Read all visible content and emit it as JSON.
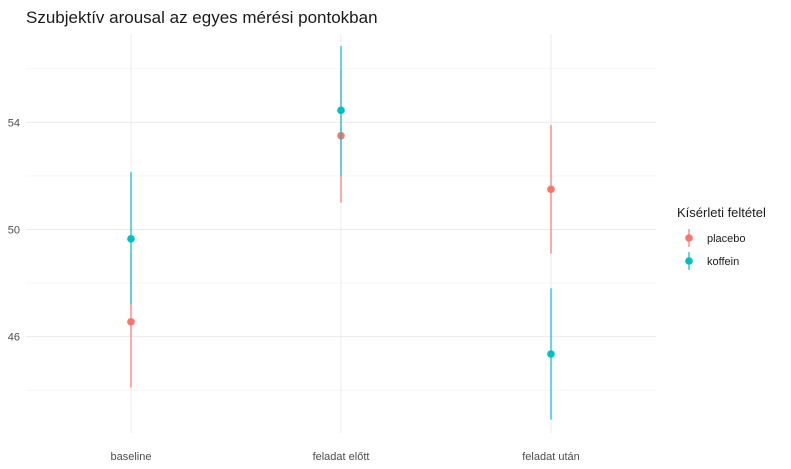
{
  "chart_data": {
    "type": "scatter",
    "title": "Szubjektív arousal az egyes mérési pontokban",
    "xlabel": "",
    "ylabel": "",
    "categories": [
      "baseline",
      "feladat előtt",
      "feladat után"
    ],
    "y_ticks": [
      46,
      50,
      54
    ],
    "ylim": [
      42.4,
      57.3
    ],
    "grid": true,
    "legend": {
      "title": "Kísérleti feltétel",
      "position": "right"
    },
    "series": [
      {
        "name": "placebo",
        "color": "#F8766D",
        "values": [
          46.55,
          53.5,
          51.5
        ],
        "lower": [
          44.1,
          51.0,
          49.1
        ],
        "upper": [
          49.1,
          55.95,
          53.9
        ]
      },
      {
        "name": "koffein",
        "color": "#00BFC4",
        "values": [
          49.65,
          54.45,
          45.35
        ],
        "lower": [
          47.2,
          52.0,
          42.9
        ],
        "upper": [
          52.15,
          56.85,
          47.8
        ]
      }
    ]
  }
}
